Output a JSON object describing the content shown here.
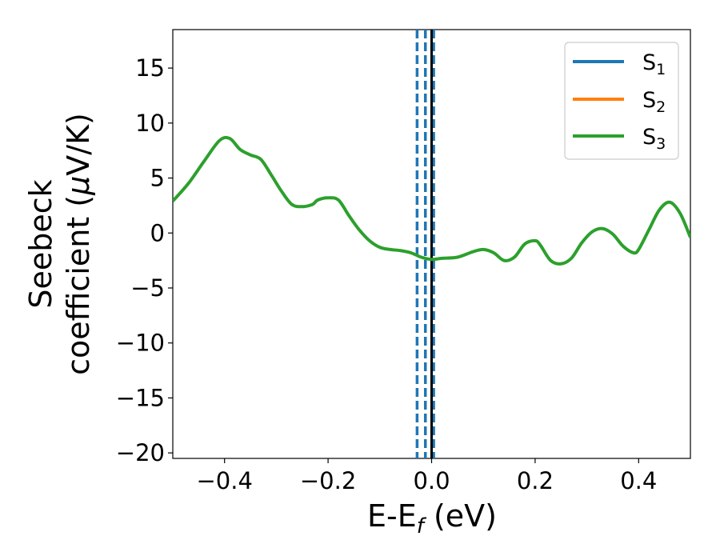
{
  "chart_data": {
    "type": "line",
    "xlabel": "E-E",
    "xlabel_sub": "f",
    "xlabel_unit": " (eV)",
    "ylabel_line1": "Seebeck",
    "ylabel_line2": "coefficient  (",
    "ylabel_mu": "μ",
    "ylabel_unit": "V/K)",
    "xlim": [
      -0.5,
      0.5
    ],
    "ylim": [
      -20.5,
      18.5
    ],
    "xticks": [
      -0.4,
      -0.2,
      0.0,
      0.2,
      0.4
    ],
    "xtick_labels": [
      "−0.4",
      "−0.2",
      "0.0",
      "0.2",
      "0.4"
    ],
    "yticks": [
      15,
      10,
      5,
      0,
      -5,
      -10,
      -15,
      -20
    ],
    "ytick_labels": [
      "15",
      "10",
      "5",
      "0",
      "−5",
      "−10",
      "−15",
      "−20"
    ],
    "legend_position": "top-right",
    "grid": false,
    "series": [
      {
        "name": "S",
        "name_sub": "1",
        "color": "#1f77b4",
        "x": [],
        "y": []
      },
      {
        "name": "S",
        "name_sub": "2",
        "color": "#ff7f0e",
        "x": [],
        "y": []
      },
      {
        "name": "S",
        "name_sub": "3",
        "color": "#2ca02c",
        "x": [
          -0.5,
          -0.47,
          -0.44,
          -0.41,
          -0.39,
          -0.37,
          -0.35,
          -0.33,
          -0.31,
          -0.29,
          -0.27,
          -0.25,
          -0.23,
          -0.22,
          -0.2,
          -0.18,
          -0.16,
          -0.14,
          -0.12,
          -0.1,
          -0.08,
          -0.06,
          -0.04,
          -0.02,
          0.0,
          0.02,
          0.05,
          0.08,
          0.1,
          0.12,
          0.14,
          0.16,
          0.18,
          0.2,
          0.21,
          0.23,
          0.25,
          0.27,
          0.29,
          0.31,
          0.33,
          0.35,
          0.37,
          0.39,
          0.4,
          0.42,
          0.44,
          0.46,
          0.48,
          0.5
        ],
        "y": [
          2.9,
          4.5,
          6.5,
          8.4,
          8.6,
          7.6,
          7.1,
          6.7,
          5.3,
          3.8,
          2.6,
          2.4,
          2.6,
          3.0,
          3.2,
          3.0,
          1.6,
          0.3,
          -0.7,
          -1.3,
          -1.5,
          -1.6,
          -1.8,
          -2.2,
          -2.4,
          -2.3,
          -2.2,
          -1.7,
          -1.5,
          -1.8,
          -2.5,
          -2.2,
          -1.0,
          -0.7,
          -1.1,
          -2.5,
          -2.8,
          -2.3,
          -0.9,
          0.1,
          0.4,
          -0.1,
          -1.2,
          -1.8,
          -1.5,
          0.3,
          2.1,
          2.8,
          1.8,
          -0.4
        ]
      }
    ],
    "vlines": [
      {
        "x": -0.028,
        "style": "dashed",
        "color": "#1f77b4"
      },
      {
        "x": -0.012,
        "style": "dashed",
        "color": "#1f77b4"
      },
      {
        "x": 0.004,
        "style": "dashed",
        "color": "#1f77b4"
      },
      {
        "x": 0.0,
        "style": "solid",
        "color": "#000000"
      }
    ]
  }
}
